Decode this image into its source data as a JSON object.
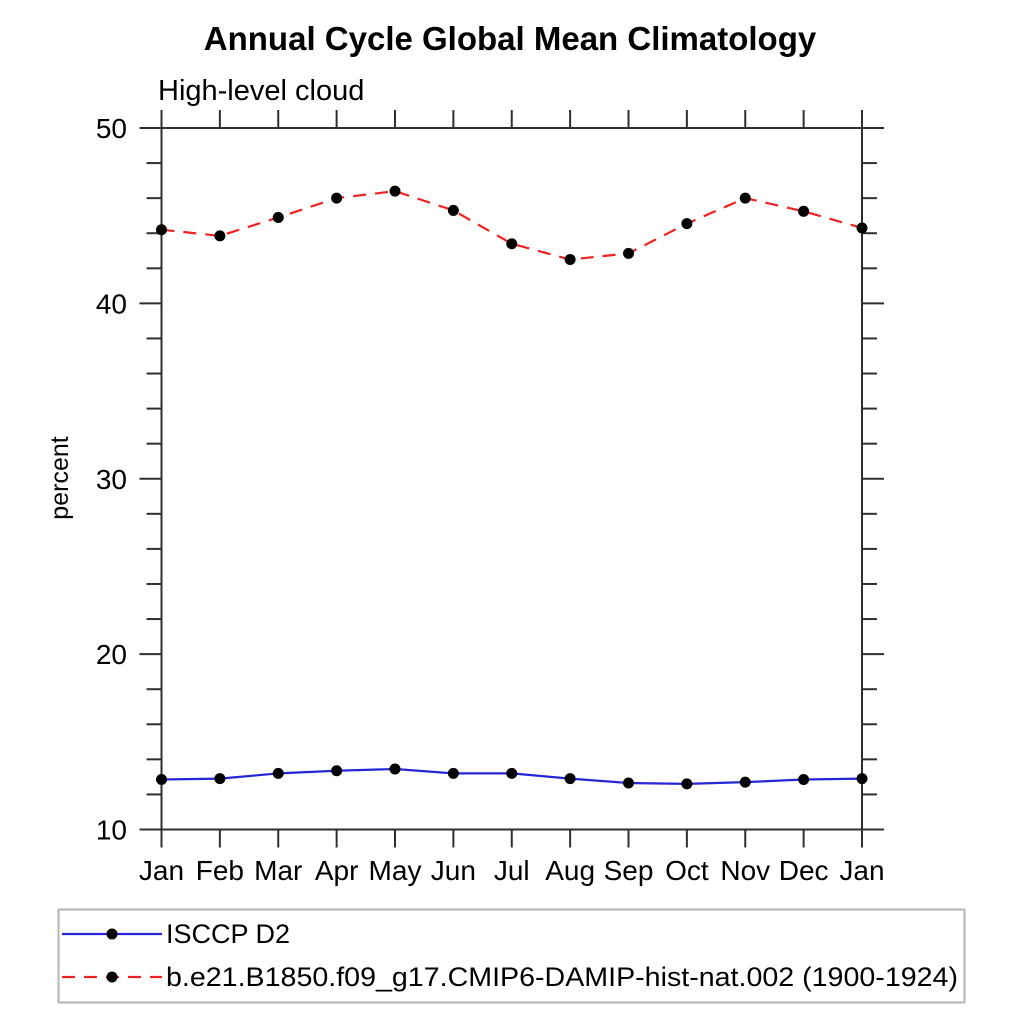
{
  "chart_data": {
    "type": "line",
    "title": "Annual Cycle Global Mean Climatology",
    "subtitle": "High-level cloud",
    "xlabel": "",
    "ylabel": "percent",
    "categories": [
      "Jan",
      "Feb",
      "Mar",
      "Apr",
      "May",
      "Jun",
      "Jul",
      "Aug",
      "Sep",
      "Oct",
      "Nov",
      "Dec",
      "Jan"
    ],
    "ylim": [
      10,
      50
    ],
    "y_major_ticks": [
      10,
      20,
      30,
      40,
      50
    ],
    "y_minor_step": 2,
    "grid": false,
    "legend_position": "bottom-left",
    "series": [
      {
        "name": "ISCCP D2",
        "style": "solid",
        "color": "#2626d8",
        "dasharray": "none",
        "marker": "filled-circle",
        "marker_color": "#000000",
        "values": [
          12.85,
          12.9,
          13.2,
          13.35,
          13.45,
          13.2,
          13.2,
          12.9,
          12.65,
          12.6,
          12.7,
          12.85,
          12.9
        ]
      },
      {
        "name": "b.e21.B1850.f09_g17.CMIP6-DAMIP-hist-nat.002 (1900-1924)",
        "style": "dashed",
        "color": "#ee2222",
        "dasharray": "13 9",
        "marker": "filled-circle",
        "marker_color": "#000000",
        "values": [
          44.2,
          43.85,
          44.9,
          46.0,
          46.4,
          45.3,
          43.4,
          42.5,
          42.85,
          44.55,
          46.0,
          45.25,
          44.3
        ]
      }
    ]
  },
  "colors": {
    "axis": "#2f2f2f",
    "text": "#000000",
    "legend_border": "#b4b4b4",
    "background": "#ffffff"
  }
}
